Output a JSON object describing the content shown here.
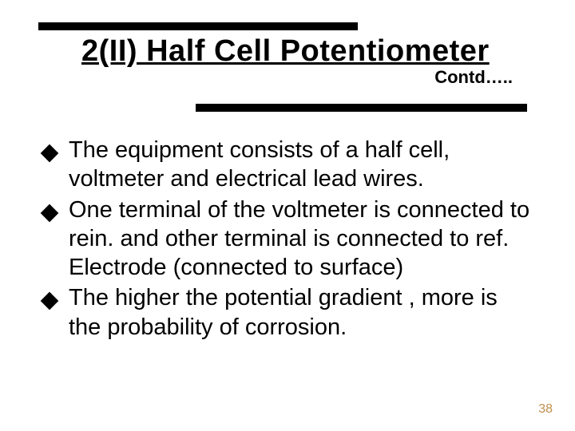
{
  "title": "2(II) Half Cell Potentiometer",
  "contd": "Contd…..",
  "bullets": [
    "The equipment consists of a half cell, voltmeter and electrical lead wires.",
    "One terminal of the voltmeter is connected to rein. and other terminal is connected to ref. Electrode (connected to surface)",
    "The higher the potential gradient , more is the probability of corrosion."
  ],
  "page_number": "38",
  "colors": {
    "bar": "#000000",
    "text": "#000000",
    "page_num": "#c09050",
    "background": "#ffffff"
  }
}
